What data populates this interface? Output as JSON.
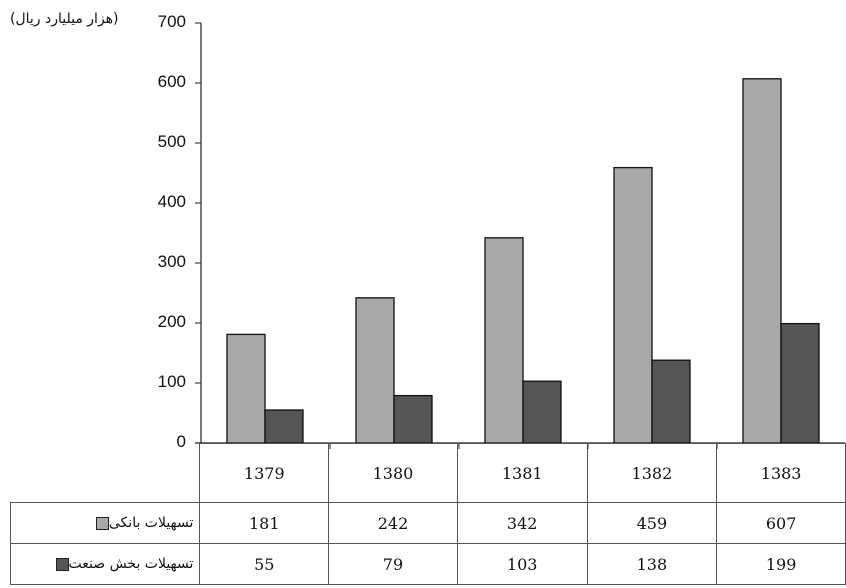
{
  "chart_data": {
    "type": "bar",
    "unit_label": "(هزار میلیارد ریال)",
    "categories": [
      "1379",
      "1380",
      "1381",
      "1382",
      "1383"
    ],
    "ylim": [
      0,
      700
    ],
    "yticks": [
      "0",
      "100",
      "200",
      "300",
      "400",
      "500",
      "600",
      "700"
    ],
    "series": [
      {
        "name": "تسهیلات بانکی",
        "values": [
          181,
          242,
          342,
          459,
          607
        ],
        "color": "#a9a9a9"
      },
      {
        "name": "تسهیلات بخش صنعت",
        "values": [
          55,
          79,
          103,
          138,
          199
        ],
        "color": "#555555"
      }
    ],
    "table_values": [
      [
        "181",
        "242",
        "342",
        "459",
        "607"
      ],
      [
        "55",
        "79",
        "103",
        "138",
        "199"
      ]
    ]
  }
}
